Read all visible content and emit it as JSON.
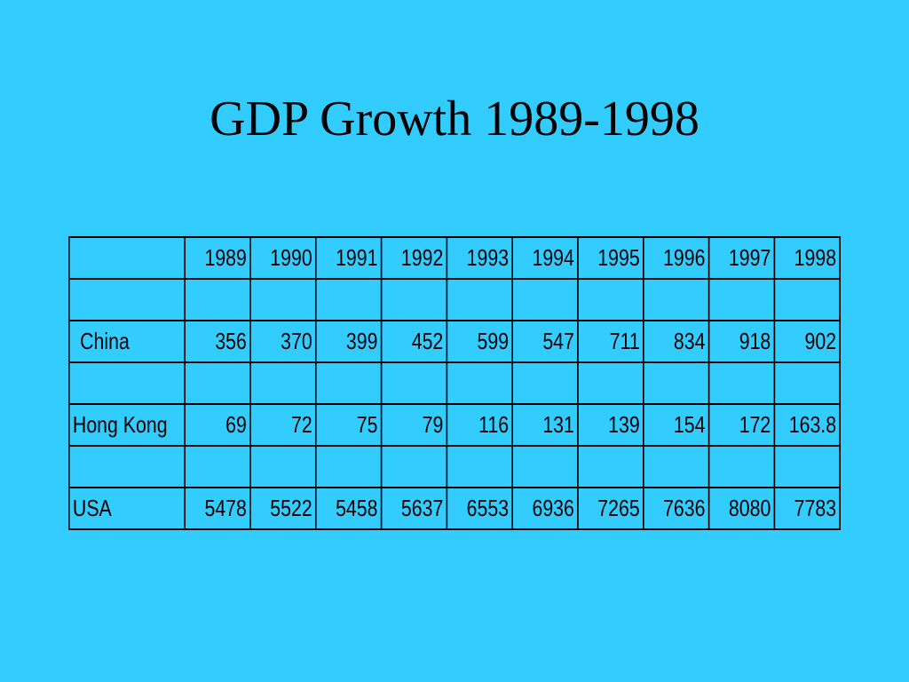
{
  "title": "GDP Growth 1989-1998",
  "table": {
    "years": [
      "1989",
      "1990",
      "1991",
      "1992",
      "1993",
      "1994",
      "1995",
      "1996",
      "1997",
      "1998"
    ],
    "rows": [
      {
        "label": "China",
        "values": [
          "356",
          "370",
          "399",
          "452",
          "599",
          "547",
          "711",
          "834",
          "918",
          "902"
        ]
      },
      {
        "label": "Hong Kong",
        "values": [
          "69",
          "72",
          "75",
          "79",
          "116",
          "131",
          "139",
          "154",
          "172",
          "163.8"
        ]
      },
      {
        "label": "USA",
        "values": [
          "5478",
          "5522",
          "5458",
          "5637",
          "6553",
          "6936",
          "7265",
          "7636",
          "8080",
          "7783"
        ]
      }
    ]
  },
  "colors": {
    "background": "#33CCFF",
    "text": "#000000",
    "grid": "#000000"
  }
}
